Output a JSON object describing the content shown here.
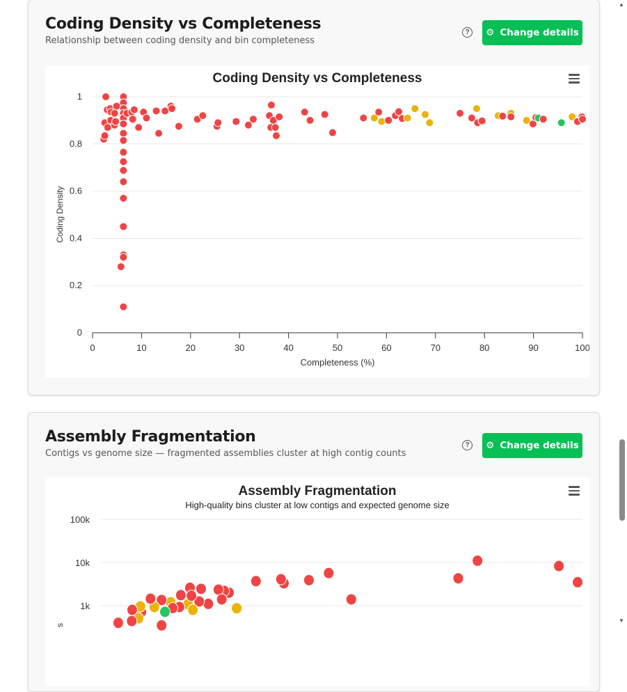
{
  "cards": [
    {
      "title": "Coding Density vs Completeness",
      "subtitle": "Relationship between coding density and bin completeness",
      "button": "Change details",
      "help_icon": "question-circle-icon",
      "button_icon": "gear-icon",
      "menu_icon": "hamburger-menu-icon"
    },
    {
      "title": "Assembly Fragmentation",
      "subtitle": "Contigs vs genome size — fragmented assemblies cluster at high contig counts",
      "button": "Change details",
      "help_icon": "question-circle-icon",
      "button_icon": "gear-icon",
      "menu_icon": "hamburger-menu-icon"
    }
  ],
  "colors": {
    "red": "#ef4444",
    "yellow": "#eab308",
    "green": "#22c55e",
    "button": "#07bf55"
  },
  "chart_data": [
    {
      "type": "scatter",
      "title": "Coding Density vs Completeness",
      "xlabel": "Completeness (%)",
      "ylabel": "Coding Density",
      "xlim": [
        0,
        100
      ],
      "ylim": [
        0,
        1
      ],
      "xticks": [
        "0",
        "10",
        "20",
        "30",
        "40",
        "50",
        "60",
        "70",
        "80",
        "90",
        "100"
      ],
      "yticks": [
        "0",
        "0.2",
        "0.4",
        "0.6",
        "0.8",
        "1"
      ],
      "grid": true,
      "points": [
        [
          6.3,
          1.0,
          "red"
        ],
        [
          6.3,
          0.975,
          "red"
        ],
        [
          6.3,
          0.95,
          "red"
        ],
        [
          6.3,
          0.93,
          "red"
        ],
        [
          6.3,
          0.91,
          "red"
        ],
        [
          6.3,
          0.885,
          "red"
        ],
        [
          6.3,
          0.845,
          "red"
        ],
        [
          6.3,
          0.815,
          "red"
        ],
        [
          6.3,
          0.765,
          "red"
        ],
        [
          6.3,
          0.725,
          "red"
        ],
        [
          6.3,
          0.688,
          "red"
        ],
        [
          6.3,
          0.64,
          "red"
        ],
        [
          6.3,
          0.57,
          "red"
        ],
        [
          6.3,
          0.45,
          "red"
        ],
        [
          6.3,
          0.33,
          "red"
        ],
        [
          6.3,
          0.32,
          "red"
        ],
        [
          6.3,
          0.11,
          "red"
        ],
        [
          2.7,
          1.0,
          "red"
        ],
        [
          2.3,
          0.82,
          "red"
        ],
        [
          2.5,
          0.835,
          "red"
        ],
        [
          2.5,
          0.89,
          "red"
        ],
        [
          3.0,
          0.945,
          "red"
        ],
        [
          3.1,
          0.87,
          "red"
        ],
        [
          3.6,
          0.95,
          "red"
        ],
        [
          3.7,
          0.9,
          "red"
        ],
        [
          3.8,
          0.935,
          "red"
        ],
        [
          4.5,
          0.93,
          "red"
        ],
        [
          4.5,
          0.88,
          "red"
        ],
        [
          4.7,
          0.895,
          "red"
        ],
        [
          4.9,
          0.96,
          "red"
        ],
        [
          5.8,
          0.28,
          "red"
        ],
        [
          7.0,
          0.93,
          "red"
        ],
        [
          8.0,
          0.935,
          "red"
        ],
        [
          8.2,
          0.905,
          "red"
        ],
        [
          8.5,
          0.945,
          "red"
        ],
        [
          9.4,
          0.87,
          "red"
        ],
        [
          10.4,
          0.935,
          "red"
        ],
        [
          11.0,
          0.91,
          "red"
        ],
        [
          13.0,
          0.94,
          "red"
        ],
        [
          13.5,
          0.845,
          "red"
        ],
        [
          14.8,
          0.94,
          "red"
        ],
        [
          16.0,
          0.96,
          "red"
        ],
        [
          16.2,
          0.95,
          "red"
        ],
        [
          17.6,
          0.875,
          "red"
        ],
        [
          21.4,
          0.905,
          "red"
        ],
        [
          22.5,
          0.92,
          "red"
        ],
        [
          25.4,
          0.875,
          "red"
        ],
        [
          25.6,
          0.89,
          "red"
        ],
        [
          29.3,
          0.895,
          "red"
        ],
        [
          31.8,
          0.88,
          "red"
        ],
        [
          32.8,
          0.905,
          "red"
        ],
        [
          36.1,
          0.92,
          "red"
        ],
        [
          36.5,
          0.965,
          "red"
        ],
        [
          36.4,
          0.87,
          "red"
        ],
        [
          36.9,
          0.9,
          "red"
        ],
        [
          37.3,
          0.87,
          "red"
        ],
        [
          37.5,
          0.835,
          "red"
        ],
        [
          38.1,
          0.915,
          "red"
        ],
        [
          43.3,
          0.935,
          "red"
        ],
        [
          44.4,
          0.9,
          "red"
        ],
        [
          47.4,
          0.925,
          "red"
        ],
        [
          49.0,
          0.848,
          "red"
        ],
        [
          55.3,
          0.91,
          "red"
        ],
        [
          57.5,
          0.91,
          "yellow"
        ],
        [
          58.4,
          0.935,
          "red"
        ],
        [
          59.0,
          0.895,
          "yellow"
        ],
        [
          60.4,
          0.9,
          "red"
        ],
        [
          61.8,
          0.92,
          "red"
        ],
        [
          62.5,
          0.937,
          "red"
        ],
        [
          63.2,
          0.908,
          "red"
        ],
        [
          64.3,
          0.91,
          "yellow"
        ],
        [
          65.8,
          0.95,
          "yellow"
        ],
        [
          67.9,
          0.925,
          "yellow"
        ],
        [
          68.8,
          0.89,
          "yellow"
        ],
        [
          75.0,
          0.93,
          "red"
        ],
        [
          77.4,
          0.91,
          "red"
        ],
        [
          78.4,
          0.95,
          "yellow"
        ],
        [
          78.6,
          0.89,
          "red"
        ],
        [
          79.5,
          0.898,
          "red"
        ],
        [
          82.8,
          0.92,
          "yellow"
        ],
        [
          83.7,
          0.918,
          "red"
        ],
        [
          85.4,
          0.93,
          "yellow"
        ],
        [
          85.4,
          0.915,
          "red"
        ],
        [
          88.6,
          0.9,
          "yellow"
        ],
        [
          89.9,
          0.885,
          "red"
        ],
        [
          90.5,
          0.912,
          "red"
        ],
        [
          91.0,
          0.91,
          "green"
        ],
        [
          92.0,
          0.905,
          "red"
        ],
        [
          95.7,
          0.89,
          "green"
        ],
        [
          97.9,
          0.915,
          "yellow"
        ],
        [
          99.0,
          0.895,
          "red"
        ],
        [
          99.9,
          0.915,
          "red"
        ],
        [
          100.0,
          0.905,
          "red"
        ]
      ]
    },
    {
      "type": "scatter",
      "title": "Assembly Fragmentation",
      "subtitle": "High-quality bins cluster at low contigs and expected genome size",
      "ylabel": "s",
      "yscale": "log",
      "yticks": [
        "1k",
        "10k",
        "100k"
      ],
      "grid": true,
      "points": [
        [
          7.42,
          4300,
          "red"
        ],
        [
          7.82,
          11000,
          "red"
        ],
        [
          9.51,
          8300,
          "red"
        ],
        [
          9.9,
          3500,
          "red"
        ],
        [
          5.2,
          1400,
          "red"
        ],
        [
          4.73,
          5700,
          "red"
        ],
        [
          4.32,
          3900,
          "red"
        ],
        [
          3.8,
          3300,
          "red"
        ],
        [
          3.74,
          4100,
          "red"
        ],
        [
          3.22,
          3700,
          "red"
        ],
        [
          2.82,
          870,
          "yellow"
        ],
        [
          2.66,
          2000,
          "red"
        ],
        [
          2.56,
          2200,
          "red"
        ],
        [
          2.44,
          2350,
          "red"
        ],
        [
          2.51,
          1400,
          "red"
        ],
        [
          2.23,
          1100,
          "red"
        ],
        [
          2.08,
          2450,
          "red"
        ],
        [
          2.04,
          1250,
          "red"
        ],
        [
          1.85,
          2600,
          "red"
        ],
        [
          1.81,
          1080,
          "yellow"
        ],
        [
          1.88,
          1700,
          "red"
        ],
        [
          1.91,
          800,
          "yellow"
        ],
        [
          1.66,
          1750,
          "red"
        ],
        [
          1.63,
          930,
          "red"
        ],
        [
          1.45,
          1200,
          "yellow"
        ],
        [
          1.49,
          880,
          "red"
        ],
        [
          1.33,
          720,
          "green"
        ],
        [
          1.26,
          1350,
          "red"
        ],
        [
          1.26,
          350,
          "red"
        ],
        [
          1.11,
          930,
          "yellow"
        ],
        [
          1.03,
          1450,
          "red"
        ],
        [
          0.84,
          720,
          "red"
        ],
        [
          0.82,
          960,
          "yellow"
        ],
        [
          0.78,
          510,
          "yellow"
        ],
        [
          0.65,
          800,
          "red"
        ],
        [
          0.64,
          440,
          "red"
        ],
        [
          0.36,
          400,
          "red"
        ]
      ]
    }
  ]
}
